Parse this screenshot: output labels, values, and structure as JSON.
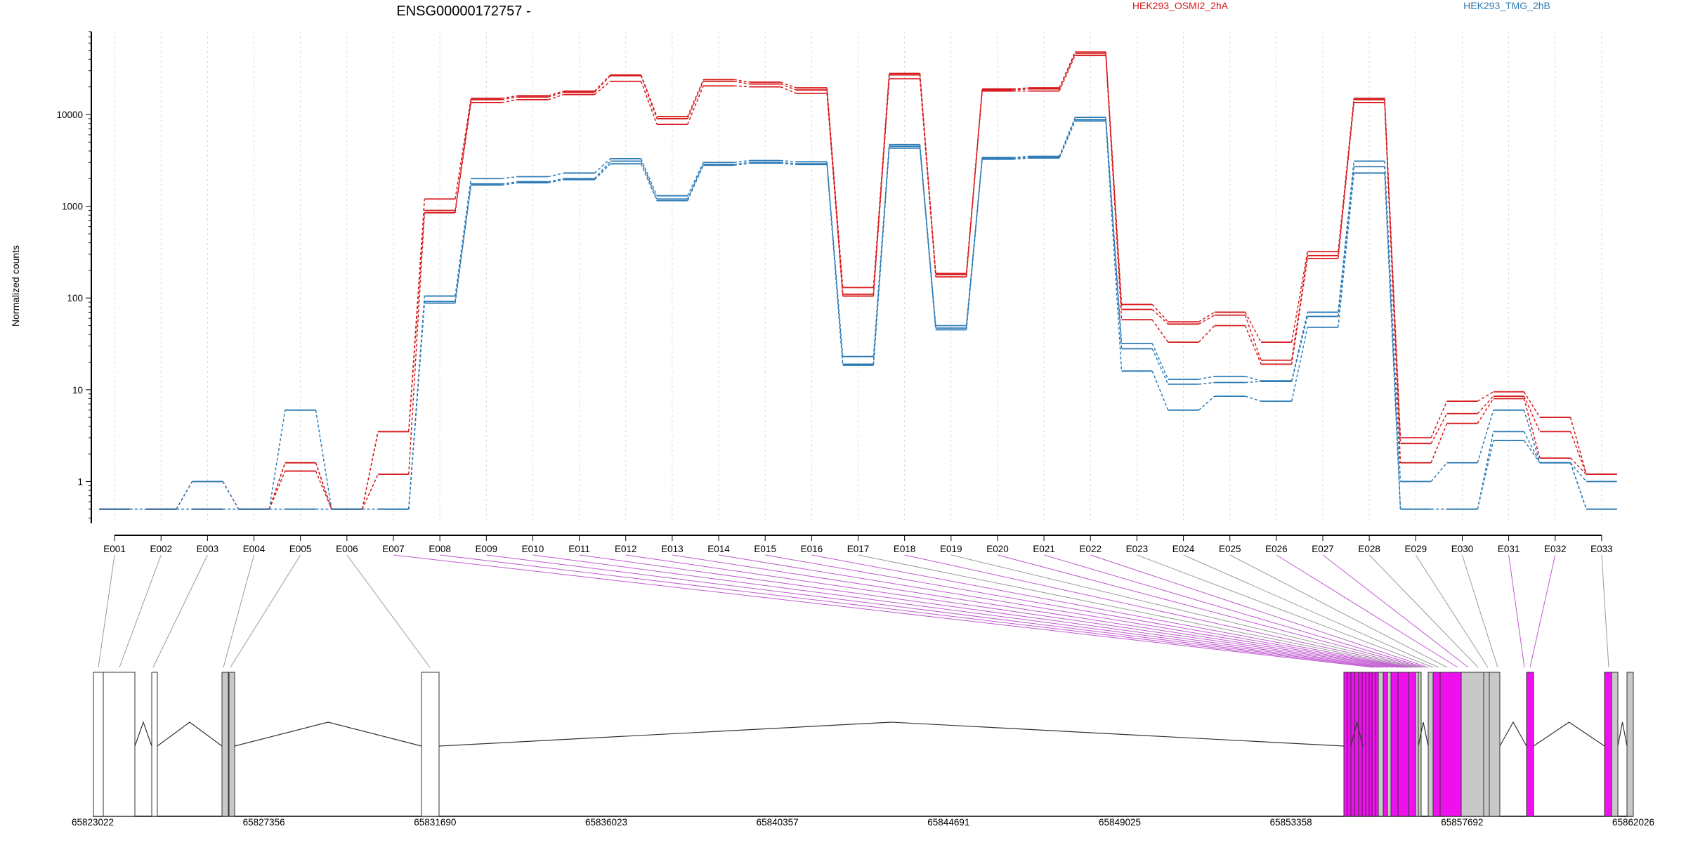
{
  "chart_data": {
    "type": "line",
    "title": "ENSG00000172757 -",
    "ylabel": "Normalized counts",
    "yscale": "log",
    "ylim": [
      0.35,
      80000
    ],
    "yticks": [
      1,
      10,
      100,
      1000,
      10000
    ],
    "ytick_labels": [
      "1",
      "10",
      "100",
      "1000",
      "10000"
    ],
    "categories": [
      "E001",
      "E002",
      "E003",
      "E004",
      "E005",
      "E006",
      "E007",
      "E008",
      "E009",
      "E010",
      "E011",
      "E012",
      "E013",
      "E014",
      "E015",
      "E016",
      "E017",
      "E018",
      "E019",
      "E020",
      "E021",
      "E022",
      "E023",
      "E024",
      "E025",
      "E026",
      "E027",
      "E028",
      "E029",
      "E030",
      "E031",
      "E032",
      "E033"
    ],
    "legend": [
      "HEK293_OSMI2_2hA",
      "HEK293_TMG_2hB"
    ],
    "colors": {
      "HEK293_OSMI2_2hA": "#d7191c",
      "HEK293_TMG_2hB": "#2c7bb6",
      "significant_exon": "#ee11ee",
      "nonsig_exon": "#c8c8c8",
      "grid": "#d8d8d8",
      "axis": "#000000"
    },
    "series": [
      {
        "name": "HEK293_OSMI2_2hA",
        "group": "red",
        "values": [
          0.5,
          0.5,
          0.5,
          0.5,
          1.6,
          0.5,
          3.5,
          1200,
          15000,
          16000,
          18000,
          27000,
          9500,
          24000,
          22500,
          19500,
          130,
          28000,
          185,
          19000,
          19500,
          48000,
          85,
          55,
          70,
          33,
          320,
          15000,
          3.0,
          7.5,
          9.5,
          5.0,
          1.2
        ]
      },
      {
        "name": "HEK293_OSMI2_2hA",
        "group": "red",
        "values": [
          0.5,
          0.5,
          0.5,
          0.5,
          1.6,
          0.5,
          3.5,
          900,
          14500,
          15500,
          17500,
          26500,
          9000,
          23000,
          21500,
          18500,
          110,
          27000,
          180,
          18500,
          19000,
          46000,
          75,
          52,
          65,
          21,
          290,
          14500,
          2.6,
          5.5,
          8.5,
          3.5,
          1.2
        ]
      },
      {
        "name": "HEK293_OSMI2_2hA",
        "group": "red",
        "values": [
          0.5,
          0.5,
          1.0,
          0.5,
          1.3,
          0.5,
          1.2,
          850,
          13500,
          14500,
          16500,
          23000,
          7800,
          20500,
          20000,
          17000,
          105,
          24500,
          170,
          18000,
          18000,
          44000,
          58,
          33,
          50,
          19,
          270,
          13500,
          1.6,
          4.3,
          8.0,
          1.8,
          1.2
        ]
      },
      {
        "name": "HEK293_TMG_2hB",
        "group": "blue",
        "values": [
          0.5,
          0.5,
          1.0,
          0.5,
          6.0,
          0.5,
          0.5,
          105,
          2000,
          2100,
          2300,
          3300,
          1300,
          3000,
          3150,
          3050,
          23,
          4700,
          50,
          3400,
          3500,
          9300,
          32,
          13,
          14,
          12.5,
          70,
          3100,
          1.0,
          1.6,
          6.0,
          1.6,
          0.5
        ]
      },
      {
        "name": "HEK293_TMG_2hB",
        "group": "blue",
        "values": [
          0.5,
          0.5,
          0.5,
          0.5,
          0.5,
          0.5,
          0.5,
          92,
          1750,
          1850,
          2000,
          3100,
          1200,
          2850,
          3000,
          2900,
          19,
          4500,
          47,
          3300,
          3400,
          8800,
          28,
          11.5,
          12,
          12.3,
          63,
          2700,
          0.5,
          0.5,
          3.5,
          1.6,
          1.0
        ]
      },
      {
        "name": "HEK293_TMG_2hB",
        "group": "blue",
        "values": [
          0.5,
          0.5,
          0.5,
          0.5,
          0.5,
          0.5,
          0.5,
          88,
          1700,
          1800,
          1950,
          2900,
          1150,
          2800,
          2950,
          2850,
          18.5,
          4300,
          45,
          3250,
          3350,
          8500,
          16,
          6.0,
          8.5,
          7.5,
          48,
          2300,
          0.5,
          0.5,
          2.8,
          1.6,
          0.5
        ]
      }
    ],
    "gene_model": {
      "coordinates": [
        65823022,
        65862026
      ],
      "coordinate_labels": [
        "65823022",
        "65827356",
        "65831690",
        "65836023",
        "65840357",
        "65844691",
        "65849025",
        "65853358",
        "65857692",
        "65862026"
      ],
      "exon_types": [
        "open",
        "open",
        "open",
        "grey",
        "grey",
        "open",
        "sig",
        "sig",
        "sig",
        "sig",
        "sig",
        "sig",
        "sig",
        "sig",
        "sig",
        "sig",
        "grey",
        "sig",
        "grey",
        "sig",
        "sig",
        "sig",
        "grey",
        "grey",
        "grey",
        "sig",
        "sig",
        "grey",
        "grey",
        "grey",
        "sig",
        "sig",
        "grey"
      ]
    }
  }
}
